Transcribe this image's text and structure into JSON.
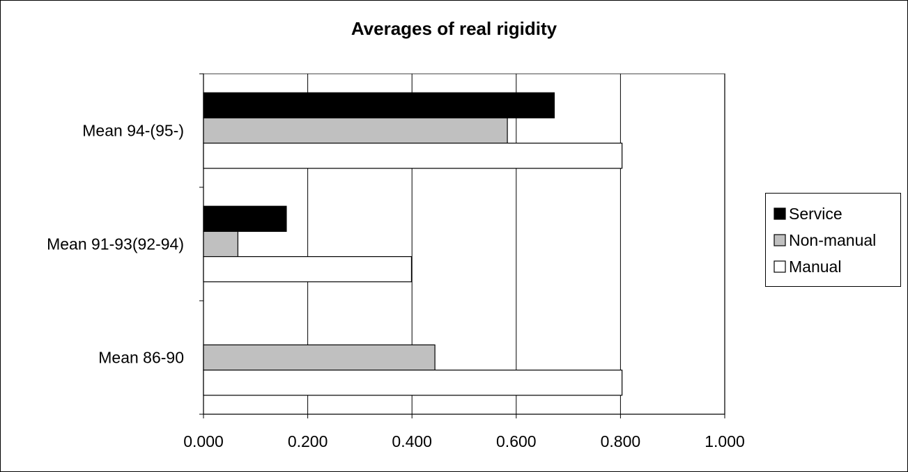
{
  "chart_data": {
    "type": "bar",
    "orientation": "horizontal",
    "title": "Averages of real rigidity",
    "categories": [
      "Mean 94-(95-)",
      "Mean 91-93(92-94)",
      "Mean 86-90"
    ],
    "series": [
      {
        "name": "Service",
        "color": "#000000",
        "values": [
          0.673,
          0.159,
          null
        ]
      },
      {
        "name": "Non-manual",
        "color": "#c0c0c0",
        "values": [
          0.583,
          0.066,
          0.444
        ]
      },
      {
        "name": "Manual",
        "color": "#ffffff",
        "values": [
          0.803,
          0.399,
          0.803
        ]
      }
    ],
    "xlim": [
      0,
      1.0
    ],
    "xticks": [
      "0.000",
      "0.200",
      "0.400",
      "0.600",
      "0.800",
      "1.000"
    ],
    "xgrid": true,
    "legend": "right"
  }
}
